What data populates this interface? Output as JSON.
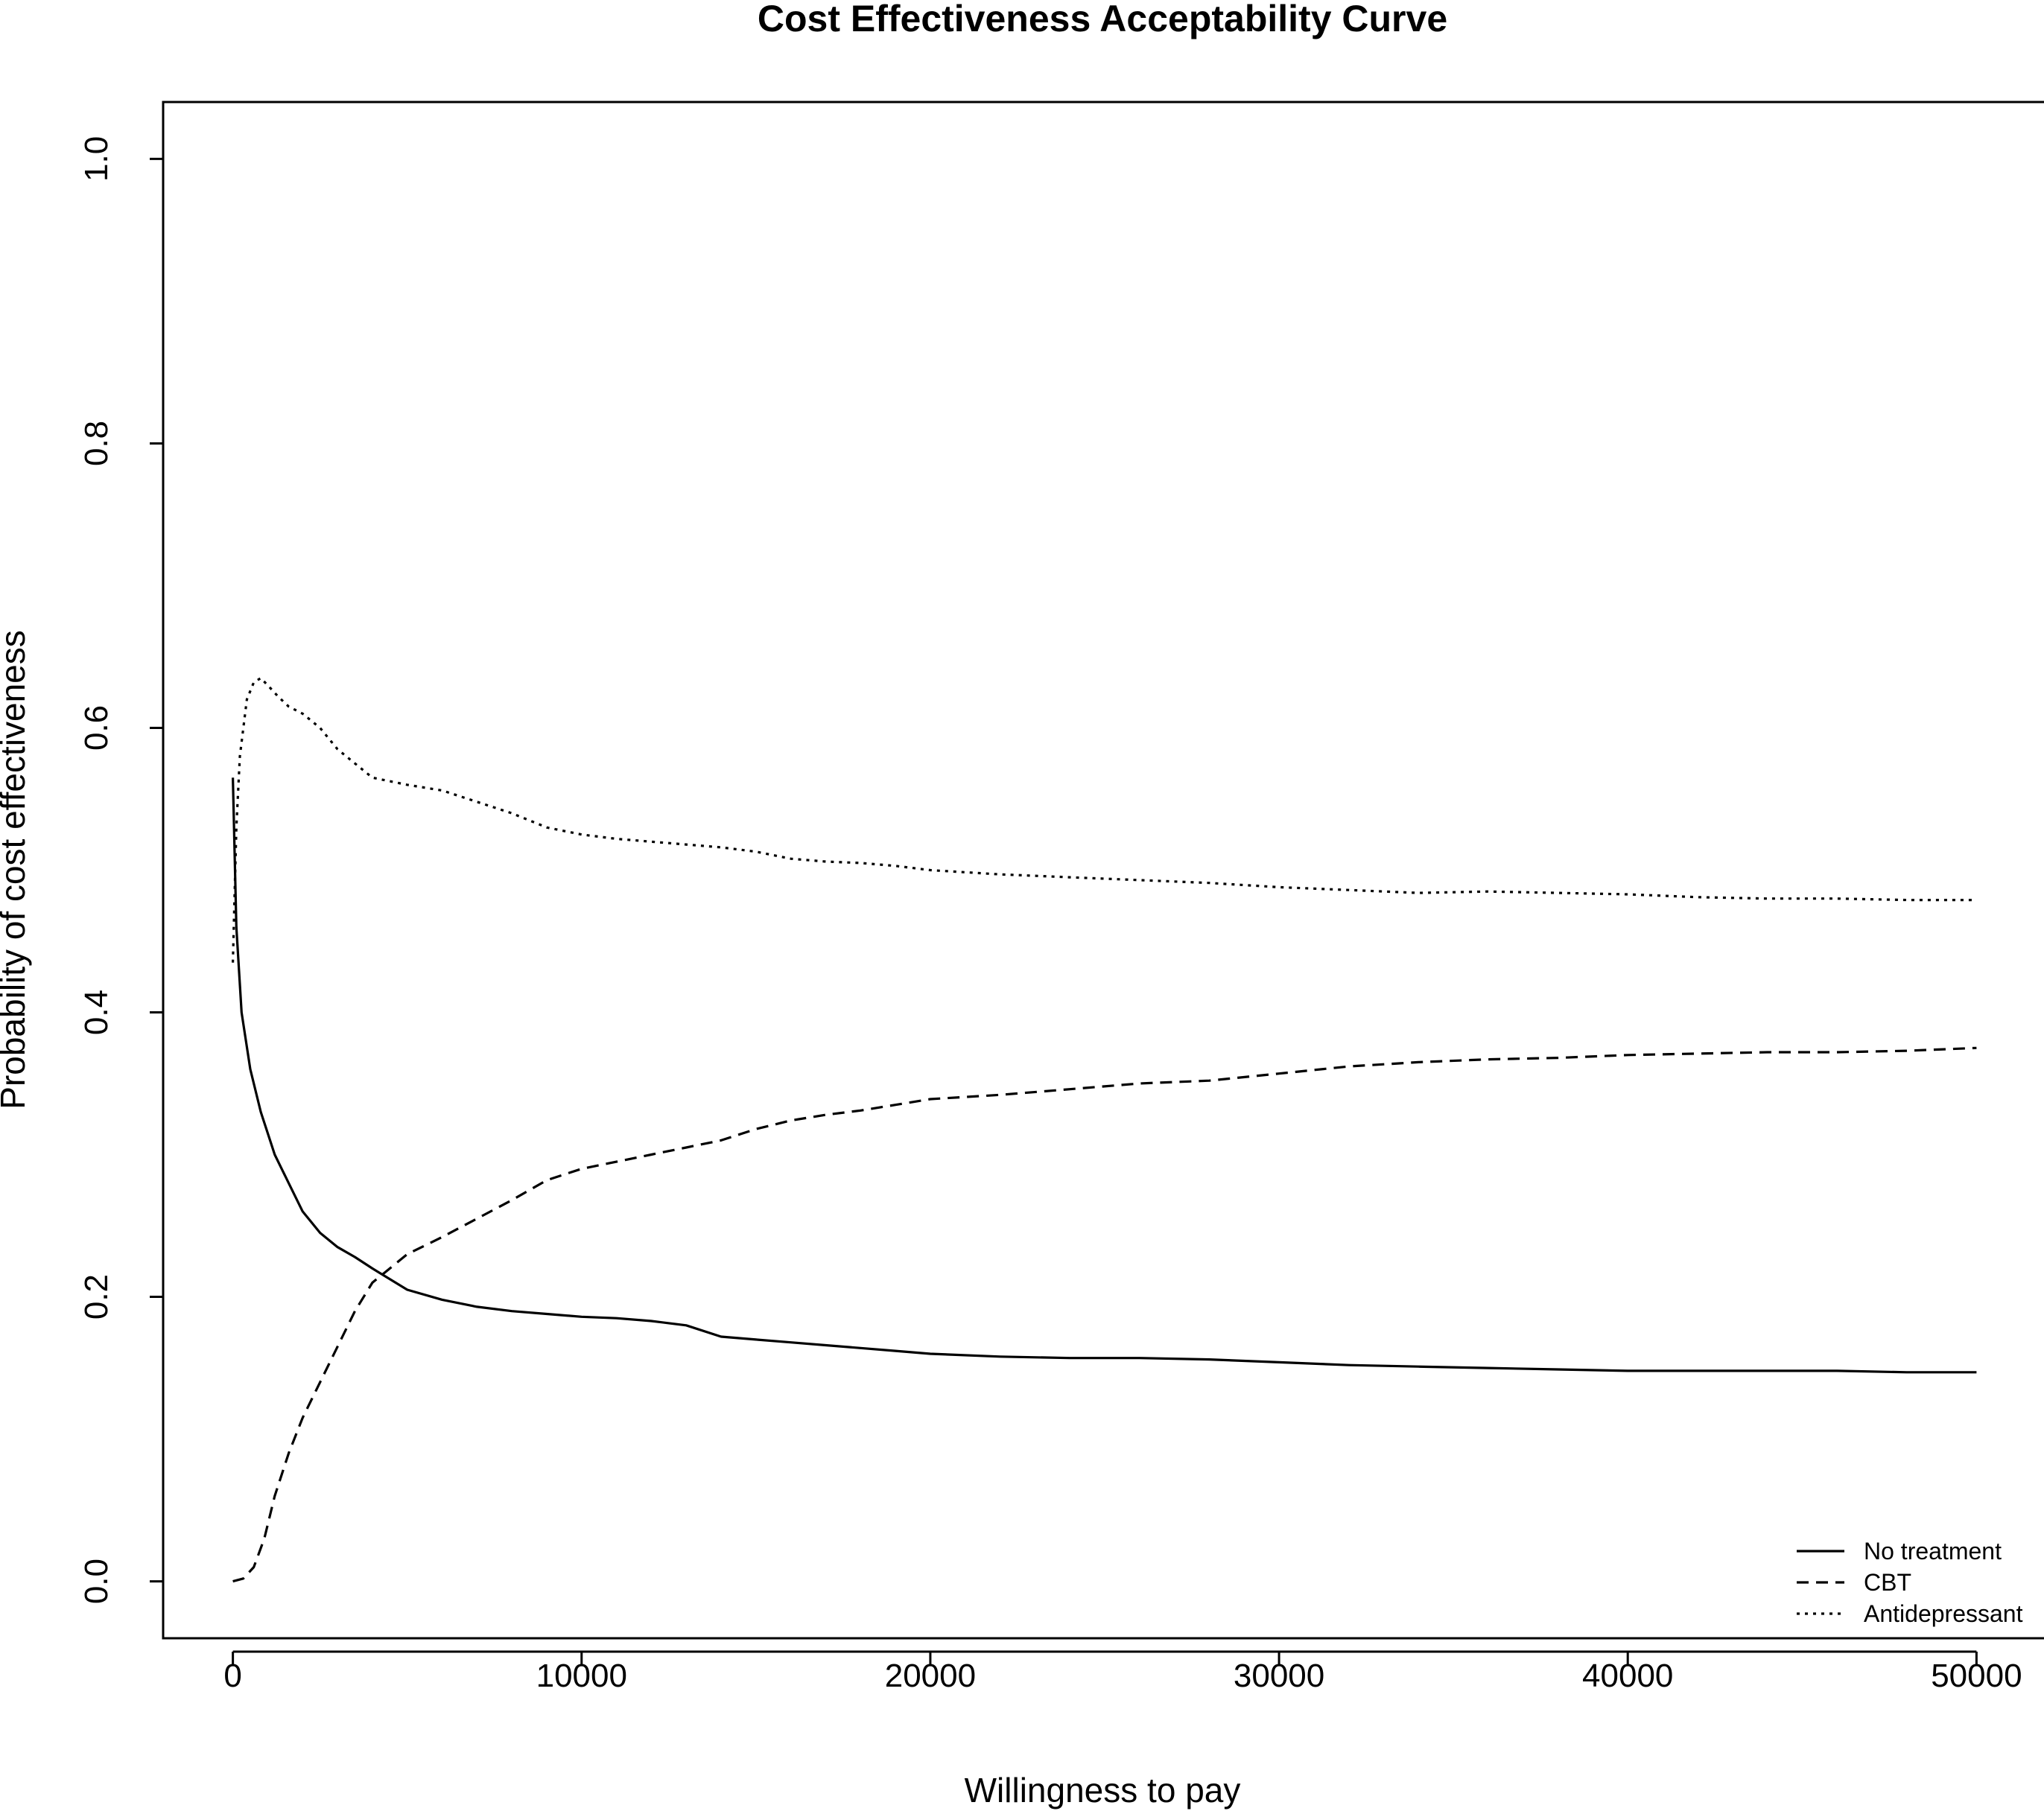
{
  "chart_data": {
    "type": "line",
    "title": "Cost Effectiveness Acceptability Curve",
    "xlabel": "Willingness to pay",
    "ylabel": "Probability of cost effectiveness",
    "xlim": [
      -2000,
      52000
    ],
    "ylim": [
      -0.04,
      1.04
    ],
    "x_ticks": [
      0,
      10000,
      20000,
      30000,
      40000,
      50000
    ],
    "y_ticks": [
      0.0,
      0.2,
      0.4,
      0.6,
      0.8,
      1.0
    ],
    "x_tick_labels": [
      "0",
      "10000",
      "20000",
      "30000",
      "40000",
      "50000"
    ],
    "y_tick_labels": [
      "0.0",
      "0.2",
      "0.4",
      "0.6",
      "0.8",
      "1.0"
    ],
    "grid": false,
    "legend_position": "bottom-right",
    "series": [
      {
        "name": "No treatment",
        "dash": "solid",
        "x": [
          0,
          100,
          250,
          500,
          800,
          1200,
          1600,
          2000,
          2500,
          3000,
          3500,
          4000,
          5000,
          6000,
          7000,
          8000,
          9000,
          10000,
          11000,
          12000,
          13000,
          14000,
          15000,
          16000,
          17000,
          18000,
          19000,
          20000,
          22000,
          24000,
          26000,
          28000,
          30000,
          32000,
          34000,
          36000,
          38000,
          40000,
          42000,
          44000,
          46000,
          48000,
          50000
        ],
        "y": [
          0.565,
          0.46,
          0.4,
          0.36,
          0.33,
          0.3,
          0.28,
          0.26,
          0.245,
          0.235,
          0.228,
          0.22,
          0.205,
          0.198,
          0.193,
          0.19,
          0.188,
          0.186,
          0.185,
          0.183,
          0.18,
          0.172,
          0.17,
          0.168,
          0.166,
          0.164,
          0.162,
          0.16,
          0.158,
          0.157,
          0.157,
          0.156,
          0.154,
          0.152,
          0.151,
          0.15,
          0.149,
          0.148,
          0.148,
          0.148,
          0.148,
          0.147,
          0.147
        ]
      },
      {
        "name": "CBT",
        "dash": "dashed",
        "x": [
          0,
          300,
          600,
          900,
          1200,
          1600,
          2000,
          2500,
          3000,
          3500,
          4000,
          5000,
          6000,
          7000,
          8000,
          9000,
          10000,
          11000,
          12000,
          13000,
          14000,
          15000,
          16000,
          17000,
          18000,
          19000,
          20000,
          22000,
          24000,
          26000,
          28000,
          30000,
          32000,
          34000,
          36000,
          38000,
          40000,
          42000,
          44000,
          46000,
          48000,
          50000
        ],
        "y": [
          0.0,
          0.002,
          0.01,
          0.03,
          0.06,
          0.09,
          0.115,
          0.14,
          0.165,
          0.19,
          0.21,
          0.23,
          0.242,
          0.255,
          0.268,
          0.282,
          0.29,
          0.295,
          0.3,
          0.305,
          0.31,
          0.318,
          0.324,
          0.328,
          0.331,
          0.335,
          0.339,
          0.342,
          0.346,
          0.35,
          0.352,
          0.357,
          0.362,
          0.365,
          0.367,
          0.368,
          0.37,
          0.371,
          0.372,
          0.372,
          0.373,
          0.375
        ]
      },
      {
        "name": "Antidepressant",
        "dash": "dotted",
        "x": [
          0,
          100,
          200,
          400,
          600,
          800,
          1000,
          1300,
          1600,
          2000,
          2500,
          3000,
          3500,
          4000,
          5000,
          6000,
          7000,
          8000,
          9000,
          10000,
          11000,
          12000,
          13000,
          14000,
          15000,
          16000,
          17000,
          18000,
          19000,
          20000,
          22000,
          24000,
          26000,
          28000,
          30000,
          32000,
          34000,
          36000,
          38000,
          40000,
          42000,
          44000,
          46000,
          48000,
          50000
        ],
        "y": [
          0.435,
          0.53,
          0.58,
          0.62,
          0.632,
          0.635,
          0.63,
          0.622,
          0.615,
          0.61,
          0.6,
          0.585,
          0.575,
          0.565,
          0.56,
          0.556,
          0.548,
          0.54,
          0.53,
          0.525,
          0.522,
          0.52,
          0.518,
          0.516,
          0.513,
          0.508,
          0.506,
          0.505,
          0.503,
          0.5,
          0.497,
          0.495,
          0.493,
          0.491,
          0.488,
          0.486,
          0.484,
          0.485,
          0.484,
          0.483,
          0.481,
          0.48,
          0.48,
          0.479,
          0.479
        ]
      }
    ]
  }
}
